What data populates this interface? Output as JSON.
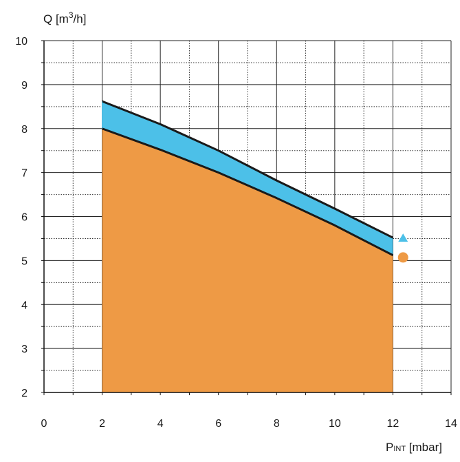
{
  "chart_data": {
    "type": "area",
    "title": "",
    "xlabel": {
      "main": "P",
      "sub": "INT",
      "unit": " [mbar]"
    },
    "ylabel": {
      "main": "Q [m",
      "sup": "3",
      "unit": "/h]"
    },
    "xlim": [
      0,
      14
    ],
    "ylim": [
      2,
      10
    ],
    "x_ticks": [
      "0",
      "2",
      "4",
      "6",
      "8",
      "10",
      "12",
      "14"
    ],
    "y_ticks": [
      "2",
      "3",
      "4",
      "5",
      "6",
      "7",
      "8",
      "9",
      "10"
    ],
    "grid": {
      "major": true,
      "minor": true,
      "minor_style": "dotted"
    },
    "series": [
      {
        "marker": "circle",
        "color": "#ee9a45",
        "fill_to_axis": true,
        "x": [
          2,
          4,
          6,
          8,
          10,
          12
        ],
        "y": [
          8.0,
          7.52,
          7.0,
          6.42,
          5.8,
          5.12
        ]
      },
      {
        "marker": "triangle",
        "color": "#4cc0e8",
        "fill_to_axis": false,
        "x": [
          2,
          4,
          6,
          8,
          10,
          12
        ],
        "y": [
          8.62,
          8.1,
          7.5,
          6.82,
          6.18,
          5.52
        ]
      }
    ],
    "legend_markers": [
      {
        "marker": "triangle",
        "color": "#4cc0e8",
        "x": 12.35,
        "y": 5.52
      },
      {
        "marker": "circle",
        "color": "#ee9a45",
        "x": 12.35,
        "y": 5.07
      }
    ],
    "curve_color": "#1a1a1a"
  }
}
